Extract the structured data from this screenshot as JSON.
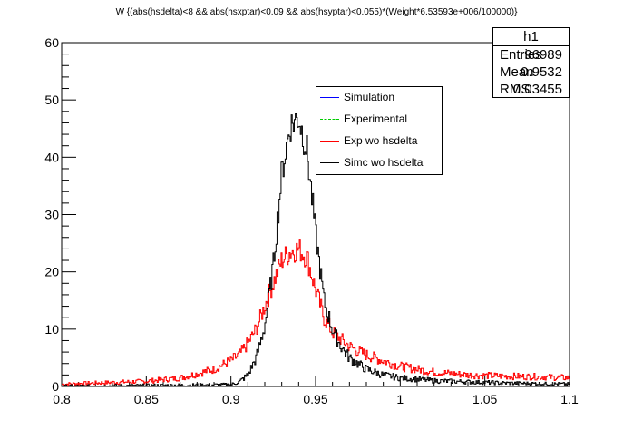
{
  "title": "W {(abs(hsdelta)<8 && abs(hsxptar)<0.09 && abs(hsyptar)<0.055)*(Weight*6.53593e+006/100000)}",
  "stats": {
    "name": "h1",
    "rows": [
      {
        "label": "Entries",
        "value": "96989"
      },
      {
        "label": "Mean",
        "value": "0.9532"
      },
      {
        "label": "RMS",
        "value": "0.03455"
      }
    ]
  },
  "legend": [
    {
      "label": "Simulation",
      "color": "#0000ff",
      "style": "solid"
    },
    {
      "label": "Experimental",
      "color": "#00cc00",
      "style": "dashed"
    },
    {
      "label": "Exp wo hsdelta",
      "color": "#ff0000",
      "style": "solid"
    },
    {
      "label": "Simc wo hsdelta",
      "color": "#000000",
      "style": "solid"
    }
  ],
  "chart_data": {
    "type": "line",
    "xlim": [
      0.8,
      1.1
    ],
    "ylim": [
      0,
      60
    ],
    "x_ticks": [
      "0.8",
      "0.85",
      "0.9",
      "0.95",
      "1",
      "1.05",
      "1.1"
    ],
    "y_ticks": [
      "0",
      "10",
      "20",
      "30",
      "40",
      "50",
      "60"
    ],
    "grid": false,
    "legend_position": "top-right",
    "series": [
      {
        "name": "Exp wo hsdelta",
        "color": "#ff0000",
        "x": [
          0.8,
          0.85,
          0.87,
          0.88,
          0.89,
          0.9,
          0.905,
          0.91,
          0.915,
          0.92,
          0.925,
          0.93,
          0.935,
          0.94,
          0.945,
          0.95,
          0.955,
          0.96,
          0.97,
          0.98,
          0.99,
          1.0,
          1.01,
          1.02,
          1.04,
          1.06,
          1.08,
          1.1
        ],
        "y": [
          0.4,
          0.9,
          1.5,
          2.2,
          3.0,
          4.5,
          5.5,
          7.5,
          10.0,
          14.0,
          18.0,
          22.0,
          23.5,
          24.0,
          22.5,
          17.0,
          12.0,
          9.5,
          7.0,
          5.5,
          4.5,
          3.5,
          3.0,
          2.5,
          2.0,
          1.8,
          1.7,
          1.5
        ]
      },
      {
        "name": "Simc wo hsdelta",
        "color": "#000000",
        "x": [
          0.8,
          0.9,
          0.905,
          0.91,
          0.915,
          0.92,
          0.925,
          0.93,
          0.935,
          0.94,
          0.945,
          0.95,
          0.955,
          0.96,
          0.965,
          0.97,
          0.98,
          0.99,
          1.0,
          1.02,
          1.04,
          1.06,
          1.08,
          1.1
        ],
        "y": [
          0.0,
          0.3,
          0.8,
          2.0,
          5.0,
          10.5,
          21.0,
          37.0,
          45.5,
          47.0,
          41.0,
          27.0,
          15.0,
          10.0,
          7.0,
          5.0,
          3.0,
          2.0,
          1.5,
          1.0,
          0.8,
          0.6,
          0.5,
          0.4
        ]
      }
    ]
  }
}
